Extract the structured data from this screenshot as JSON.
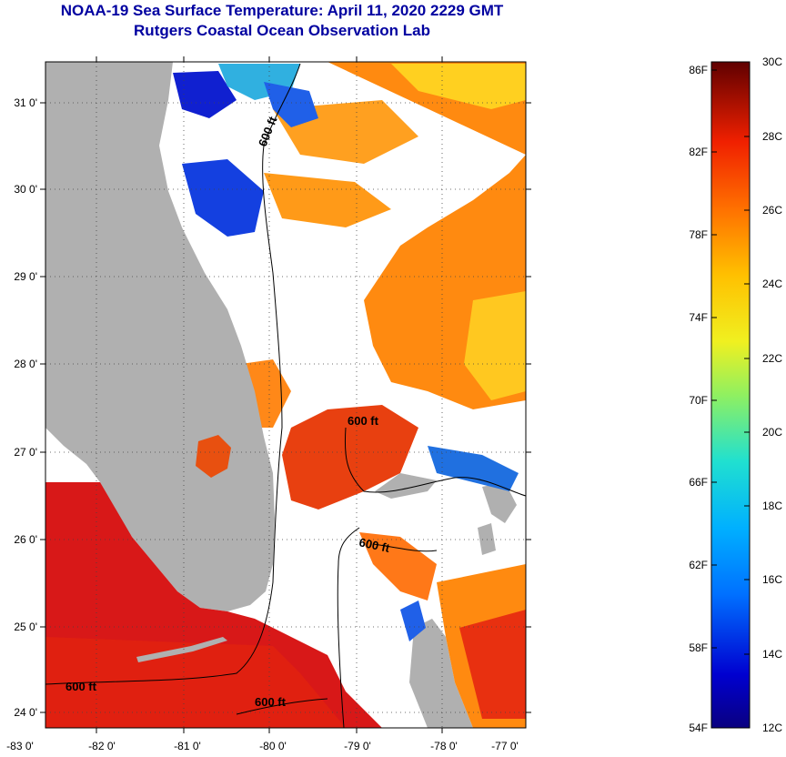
{
  "header": {
    "title": "NOAA-19 Sea Surface Temperature:  April 11, 2020 2229 GMT",
    "subtitle": "Rutgers Coastal Ocean Observation Lab"
  },
  "map": {
    "lat_labels": [
      "31 0'",
      "30 0'",
      "29 0'",
      "28 0'",
      "27 0'",
      "26 0'",
      "25 0'",
      "24 0'"
    ],
    "lon_labels": [
      "-83 0'",
      "-82 0'",
      "-81 0'",
      "-80 0'",
      "-79 0'",
      "-78 0'",
      "-77 0'"
    ],
    "contour_labels": [
      "600 ft",
      "600 ft",
      "600 ft",
      "600 ft",
      "600 ft"
    ],
    "colors": {
      "land": "#b0b0b0",
      "cloud": "#ffffff",
      "warm_water": "#d81010",
      "gulf_stream": "#e83a10"
    }
  },
  "colorbar": {
    "fahrenheit_labels": [
      "86F",
      "82F",
      "78F",
      "74F",
      "70F",
      "66F",
      "62F",
      "58F",
      "54F"
    ],
    "celsius_labels": [
      "30C",
      "28C",
      "26C",
      "24C",
      "22C",
      "20C",
      "18C",
      "16C",
      "14C",
      "12C"
    ]
  }
}
